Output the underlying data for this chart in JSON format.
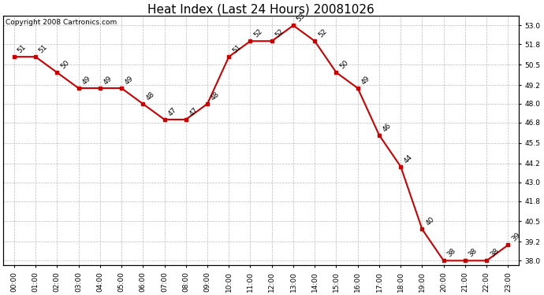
{
  "title": "Heat Index (Last 24 Hours) 20081026",
  "copyright": "Copyright 2008 Cartronics.com",
  "hours": [
    "00:00",
    "01:00",
    "02:00",
    "03:00",
    "04:00",
    "05:00",
    "06:00",
    "07:00",
    "08:00",
    "09:00",
    "10:00",
    "11:00",
    "12:00",
    "13:00",
    "14:00",
    "15:00",
    "16:00",
    "17:00",
    "18:00",
    "19:00",
    "20:00",
    "21:00",
    "22:00",
    "23:00"
  ],
  "values": [
    51,
    51,
    50,
    49,
    49,
    49,
    48,
    47,
    47,
    48,
    51,
    52,
    52,
    53,
    52,
    50,
    49,
    46,
    44,
    40,
    38,
    38,
    38,
    39
  ],
  "line_color": "#cc0000",
  "marker": "s",
  "marker_size": 3,
  "bg_color": "#ffffff",
  "plot_bg_color": "#ffffff",
  "grid_color": "#bbbbbb",
  "ylim_min": 37.7,
  "ylim_max": 53.6,
  "yticks": [
    38.0,
    39.2,
    40.5,
    41.8,
    43.0,
    44.2,
    45.5,
    46.8,
    48.0,
    49.2,
    50.5,
    51.8,
    53.0
  ],
  "ytick_labels": [
    "38.0",
    "39.2",
    "40.5",
    "41.8",
    "43.0",
    "44.2",
    "45.5",
    "46.8",
    "48.0",
    "49.2",
    "50.5",
    "51.8",
    "53.0"
  ],
  "label_fontsize": 6.5,
  "title_fontsize": 11,
  "copyright_fontsize": 6.5,
  "annotation_fontsize": 6.5
}
